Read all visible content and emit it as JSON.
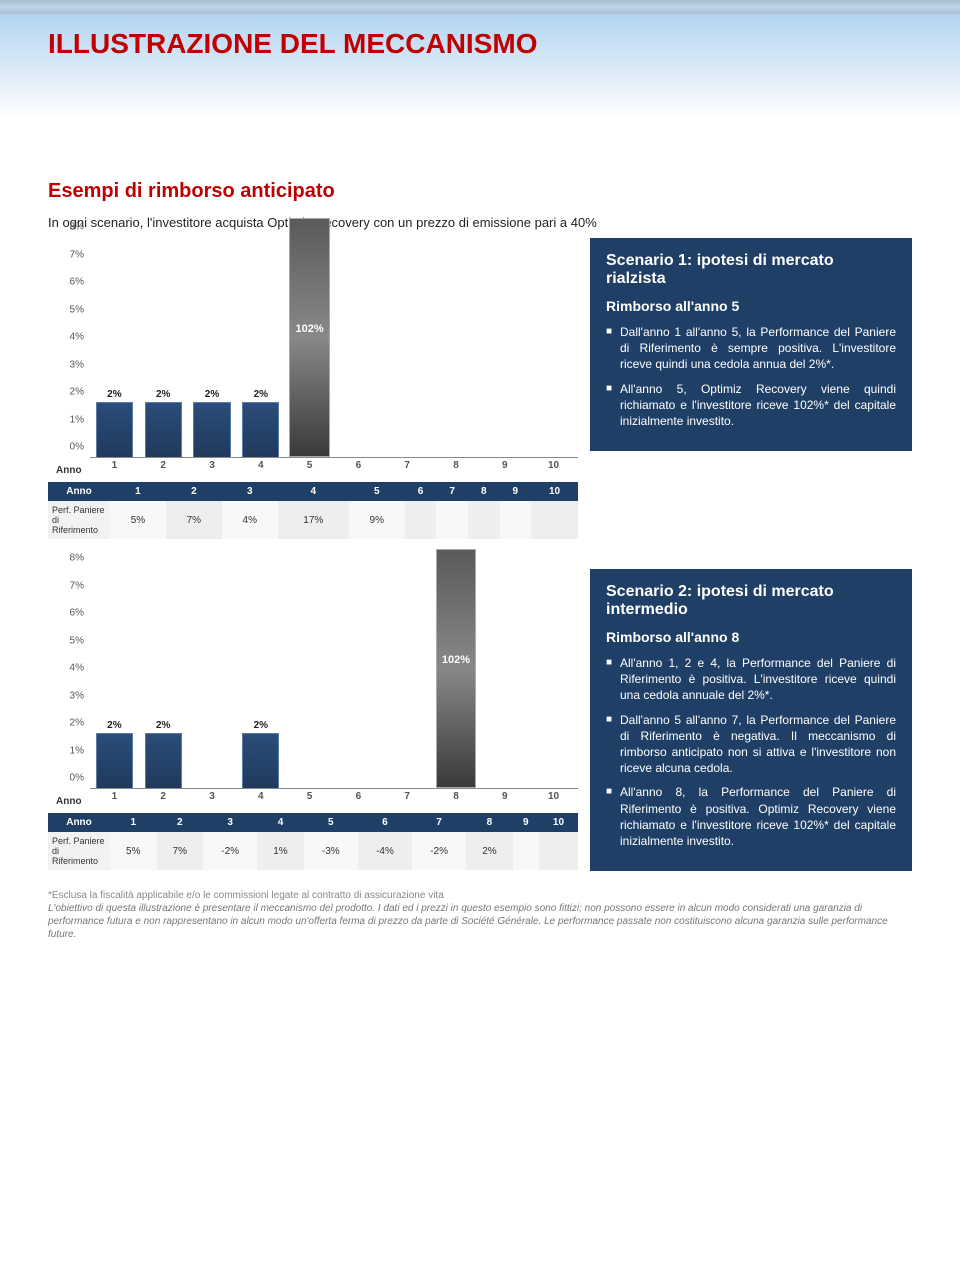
{
  "page": {
    "title": "ILLUSTRAZIONE DEL MECCANISMO",
    "subtitle": "Esempi di rimborso anticipato",
    "intro": "In ogni scenario, l'investitore acquista Optimiz Recovery con un prezzo di emissione pari a 40%"
  },
  "chart_common": {
    "y_ticks": [
      "0%",
      "1%",
      "2%",
      "3%",
      "4%",
      "5%",
      "6%",
      "7%",
      "8%"
    ],
    "y_max_pct": 8,
    "x_labels": [
      "1",
      "2",
      "3",
      "4",
      "5",
      "6",
      "7",
      "8",
      "9",
      "10"
    ],
    "anno_label": "Anno",
    "bar_color": "#1f3a5c",
    "big_bar_color": "#5a5a5a",
    "big_bar_label": "102%"
  },
  "scenario1": {
    "bars": [
      {
        "slot": 1,
        "val": 2,
        "label": "2%"
      },
      {
        "slot": 2,
        "val": 2,
        "label": "2%"
      },
      {
        "slot": 3,
        "val": 2,
        "label": "2%"
      },
      {
        "slot": 4,
        "val": 2,
        "label": "2%"
      }
    ],
    "big_bar_slot": 5,
    "table": {
      "header": [
        "Anno",
        "1",
        "2",
        "3",
        "4",
        "5",
        "6",
        "7",
        "8",
        "9",
        "10"
      ],
      "row_label": "Perf. Paniere di Riferimento",
      "row": [
        "5%",
        "7%",
        "4%",
        "17%",
        "9%",
        "",
        "",
        "",
        "",
        ""
      ]
    },
    "box": {
      "title": "Scenario 1: ipotesi di mercato rialzista",
      "sub": "Rimborso all'anno 5",
      "bullets": [
        "Dall'anno 1 all'anno 5, la Performance del Paniere di Riferimento è sempre positiva. L'investitore riceve quindi una cedola annua del 2%*.",
        "All'anno 5, Optimiz Recovery viene quindi richiamato e l'investitore riceve 102%* del capitale inizialmente investito."
      ]
    }
  },
  "scenario2": {
    "bars": [
      {
        "slot": 1,
        "val": 2,
        "label": "2%"
      },
      {
        "slot": 2,
        "val": 2,
        "label": "2%"
      },
      {
        "slot": 4,
        "val": 2,
        "label": "2%"
      }
    ],
    "big_bar_slot": 8,
    "table": {
      "header": [
        "Anno",
        "1",
        "2",
        "3",
        "4",
        "5",
        "6",
        "7",
        "8",
        "9",
        "10"
      ],
      "row_label": "Perf. Paniere di Riferimento",
      "row": [
        "5%",
        "7%",
        "-2%",
        "1%",
        "-3%",
        "-4%",
        "-2%",
        "2%",
        "",
        ""
      ]
    },
    "box": {
      "title": "Scenario 2: ipotesi di mercato intermedio",
      "sub": "Rimborso all'anno 8",
      "bullets": [
        "All'anno 1, 2 e 4, la Performance del Paniere di Riferimento è positiva. L'investitore riceve quindi una cedola annuale del 2%*.",
        "Dall'anno 5 all'anno 7, la Performance del Paniere di Riferimento è negativa. Il meccanismo di rimborso anticipato non si attiva e l'investitore non riceve alcuna cedola.",
        "All'anno 8, la Performance del Paniere di Riferimento è positiva. Optimiz Recovery viene richiamato e l'investitore riceve 102%* del capitale inizialmente investito."
      ]
    }
  },
  "footnote": {
    "line1": "*Esclusa la fiscalità applicabile e/o le commissioni legate al contratto di assicurazione vita",
    "line2": "L'obiettivo di questa illustrazione è presentare il meccanismo del prodotto. I dati ed i prezzi in questo esempio sono fittizi; non possono essere in alcun modo considerati una garanzia di performance futura e non rappresentano in alcun modo un'offerta ferma di prezzo da parte di Société Générale. Le performance passate non costituiscono alcuna garanzia sulle performance future."
  }
}
